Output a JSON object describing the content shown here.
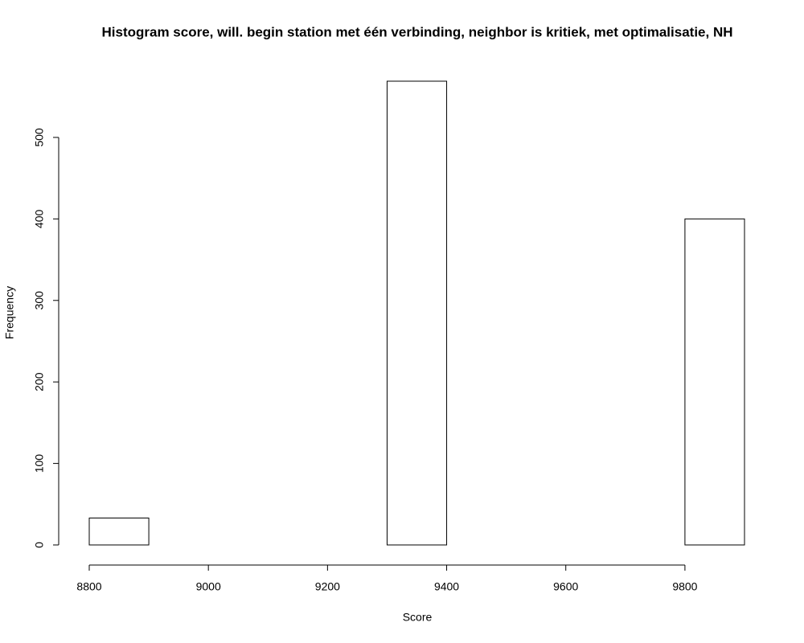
{
  "chart_data": {
    "type": "histogram",
    "title": "Histogram score, will. begin station met één verbinding, neighbor is kritiek, met optimalisatie, NH",
    "x_label": "Score",
    "y_label": "Frequency",
    "bins": [
      8800,
      8900,
      9000,
      9100,
      9200,
      9300,
      9400,
      9500,
      9600,
      9700,
      9800,
      9900
    ],
    "values": [
      33,
      0,
      0,
      0,
      0,
      569,
      0,
      0,
      0,
      0,
      400
    ],
    "color": "#ffffff",
    "xlim": [
      8800,
      9900
    ],
    "ylim": [
      0,
      569
    ],
    "xticks": [
      8800,
      9000,
      9200,
      9400,
      9600,
      9800
    ],
    "yticks": [
      0,
      100,
      200,
      300,
      400,
      500
    ]
  }
}
